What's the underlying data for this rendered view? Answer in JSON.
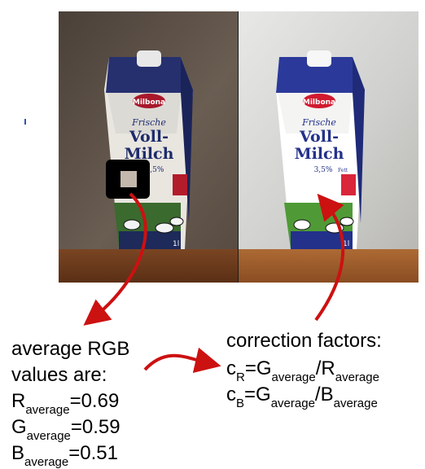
{
  "photos": {
    "left": {
      "brand": "Milbona",
      "line1": "Frische",
      "line2": "Voll-",
      "line3": "Milch",
      "fat": "3,5%",
      "fat_word": "Fett",
      "volume": "1l"
    },
    "right": {
      "brand": "Milbona",
      "line1": "Frische",
      "line2": "Voll-",
      "line3": "Milch",
      "fat": "3,5%",
      "fat_word": "Fett",
      "volume": "1l"
    }
  },
  "colors": {
    "arrow": "#cc1111",
    "marker_frame": "#000000",
    "marker_patch": "#c4b8ad",
    "carton_blue": "#23318a",
    "brand_red": "#c8102e",
    "wall_left": "#5a5046",
    "wall_right": "#d4d4d2",
    "table_left": "#6b3d1e",
    "table_right": "#9a5a2b"
  },
  "left_text": {
    "line1": "average RGB",
    "line2": "values are:",
    "r_base": "R",
    "r_sub": "average",
    "r_val": "=0.69",
    "g_base": "G",
    "g_sub": "average",
    "g_val": "=0.59",
    "b_base": "B",
    "b_sub": "average",
    "b_val": "=0.51"
  },
  "right_text": {
    "title": "correction factors:",
    "cr_c": "c",
    "cr_sub": "R",
    "cr_eq": "=G",
    "cr_num_sub": "average",
    "cr_slash": "/R",
    "cr_den_sub": "average",
    "cb_c": "c",
    "cb_sub": "B",
    "cb_eq": "=G",
    "cb_num_sub": "average",
    "cb_slash": "/B",
    "cb_den_sub": "average"
  }
}
